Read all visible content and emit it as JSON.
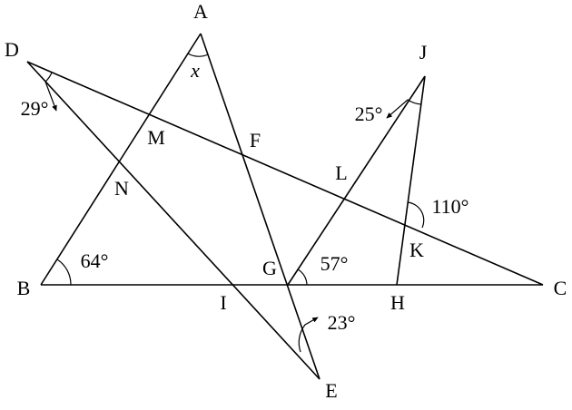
{
  "points": [
    {
      "label": "A"
    },
    {
      "label": "B"
    },
    {
      "label": "C"
    },
    {
      "label": "D"
    },
    {
      "label": "E"
    },
    {
      "label": "F"
    },
    {
      "label": "G"
    },
    {
      "label": "H"
    },
    {
      "label": "I"
    },
    {
      "label": "J"
    },
    {
      "label": "K"
    },
    {
      "label": "L"
    },
    {
      "label": "M"
    },
    {
      "label": "N"
    }
  ],
  "angles": [
    {
      "label": "29°"
    },
    {
      "label": "x"
    },
    {
      "label": "64°"
    },
    {
      "label": "25°"
    },
    {
      "label": "110°"
    },
    {
      "label": "57°"
    },
    {
      "label": "23°"
    }
  ]
}
